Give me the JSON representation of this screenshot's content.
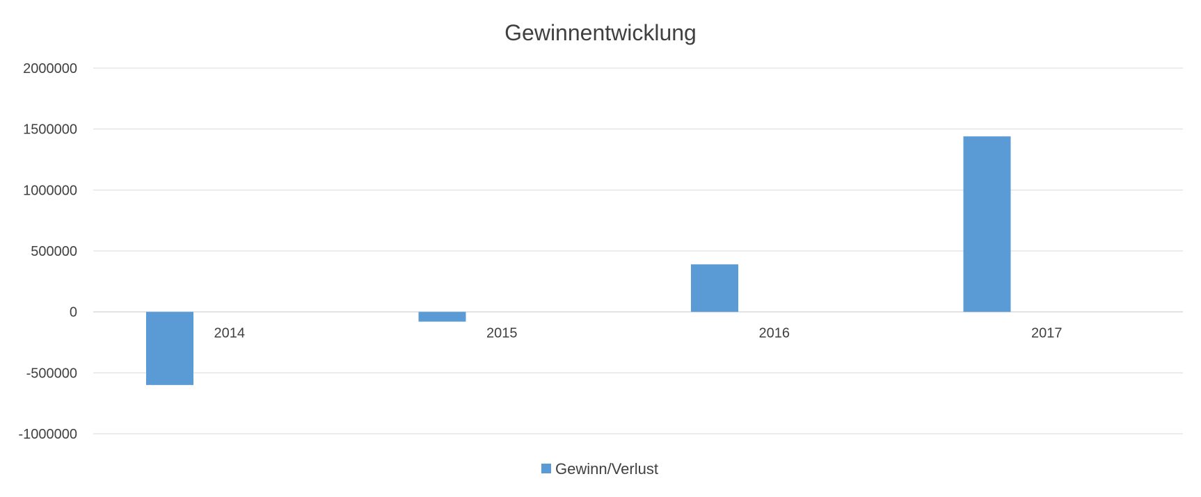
{
  "chart_data": {
    "type": "bar",
    "title": "Gewinnentwicklung",
    "xlabel": "",
    "ylabel": "",
    "categories": [
      "2014",
      "2015",
      "2016",
      "2017"
    ],
    "series": [
      {
        "name": "Gewinn/Verlust",
        "values": [
          -600000,
          -80000,
          390000,
          1440000
        ]
      }
    ],
    "ylim": [
      -1000000,
      2000000
    ],
    "yticks": [
      2000000,
      1500000,
      1000000,
      500000,
      0,
      -500000,
      -1000000
    ],
    "ytick_labels": [
      "2000000",
      "1500000",
      "1000000",
      "500000",
      "0",
      "-500000",
      "-1000000"
    ],
    "grid": true,
    "legend_position": "bottom",
    "colors": {
      "bar": "#5B9BD5",
      "grid": "#D9D9D9",
      "text": "#404040"
    }
  }
}
